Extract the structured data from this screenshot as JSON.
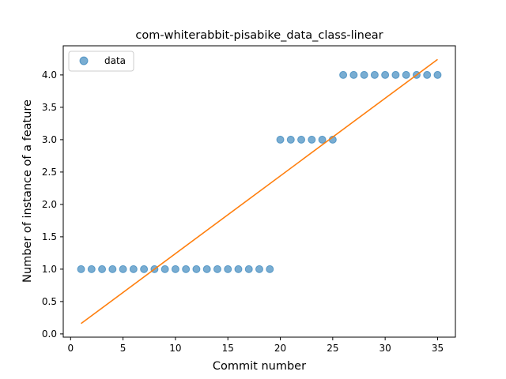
{
  "chart_data": {
    "type": "scatter",
    "title": "com-whiterabbit-pisabike_data_class-linear",
    "xlabel": "Commit number",
    "ylabel": "Number of instance of a feature",
    "xlim": [
      -0.7,
      36.7
    ],
    "ylim": [
      -0.05,
      4.45
    ],
    "x_ticks": [
      0,
      5,
      10,
      15,
      20,
      25,
      30,
      35
    ],
    "y_ticks": [
      0.0,
      0.5,
      1.0,
      1.5,
      2.0,
      2.5,
      3.0,
      3.5,
      4.0
    ],
    "x_tick_labels": [
      "0",
      "5",
      "10",
      "15",
      "20",
      "25",
      "30",
      "35"
    ],
    "y_tick_labels": [
      "0.0",
      "0.5",
      "1.0",
      "1.5",
      "2.0",
      "2.5",
      "3.0",
      "3.5",
      "4.0"
    ],
    "legend_position": "top-left",
    "grid": false,
    "series": [
      {
        "name": "data",
        "kind": "scatter",
        "color": "#1f77b4",
        "x": [
          1,
          2,
          3,
          4,
          5,
          6,
          7,
          8,
          9,
          10,
          11,
          12,
          13,
          14,
          15,
          16,
          17,
          18,
          19,
          20,
          21,
          22,
          23,
          24,
          25,
          26,
          27,
          28,
          29,
          30,
          31,
          32,
          33,
          34,
          35
        ],
        "y": [
          1,
          1,
          1,
          1,
          1,
          1,
          1,
          1,
          1,
          1,
          1,
          1,
          1,
          1,
          1,
          1,
          1,
          1,
          1,
          3,
          3,
          3,
          3,
          3,
          3,
          4,
          4,
          4,
          4,
          4,
          4,
          4,
          4,
          4,
          4
        ]
      },
      {
        "kind": "line",
        "color": "#ff7f0e",
        "x": [
          1,
          35
        ],
        "y": [
          0.16,
          4.24
        ]
      }
    ]
  }
}
